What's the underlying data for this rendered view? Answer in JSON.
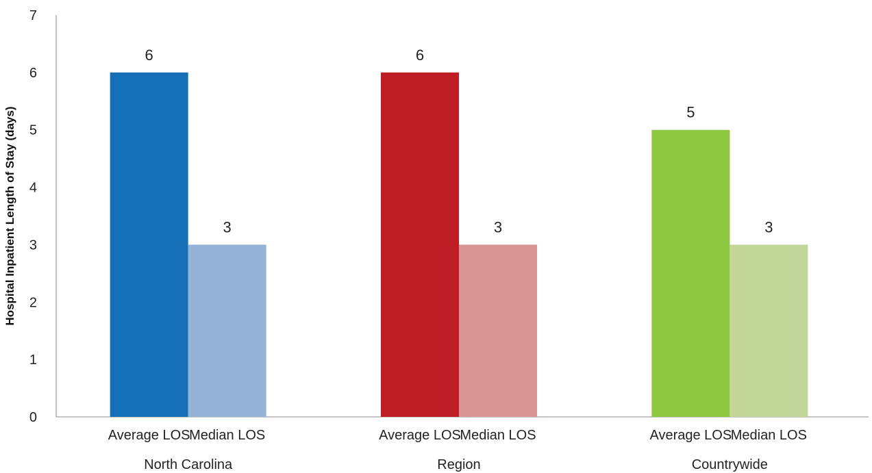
{
  "chart_data": {
    "type": "bar",
    "title": "",
    "xlabel": "",
    "ylabel": "Hospital Inpatient Length of Stay (days)",
    "ylim": [
      0,
      7
    ],
    "yticks": [
      "0",
      "1",
      "2",
      "3",
      "4",
      "5",
      "6",
      "7"
    ],
    "grid": false,
    "legend": "none",
    "groups": [
      {
        "name": "North Carolina",
        "bars": [
          {
            "label": "Average LOS",
            "value": 6,
            "color": "#1570B8"
          },
          {
            "label": "Median LOS",
            "value": 3,
            "color": "#95B3D7"
          }
        ]
      },
      {
        "name": "Region",
        "bars": [
          {
            "label": "Average LOS",
            "value": 6,
            "color": "#BE1E24"
          },
          {
            "label": "Median LOS",
            "value": 3,
            "color": "#D99594"
          }
        ]
      },
      {
        "name": "Countrywide",
        "bars": [
          {
            "label": "Average LOS",
            "value": 5,
            "color": "#8DC63F"
          },
          {
            "label": "Median LOS",
            "value": 3,
            "color": "#C4D79B"
          }
        ]
      }
    ]
  }
}
